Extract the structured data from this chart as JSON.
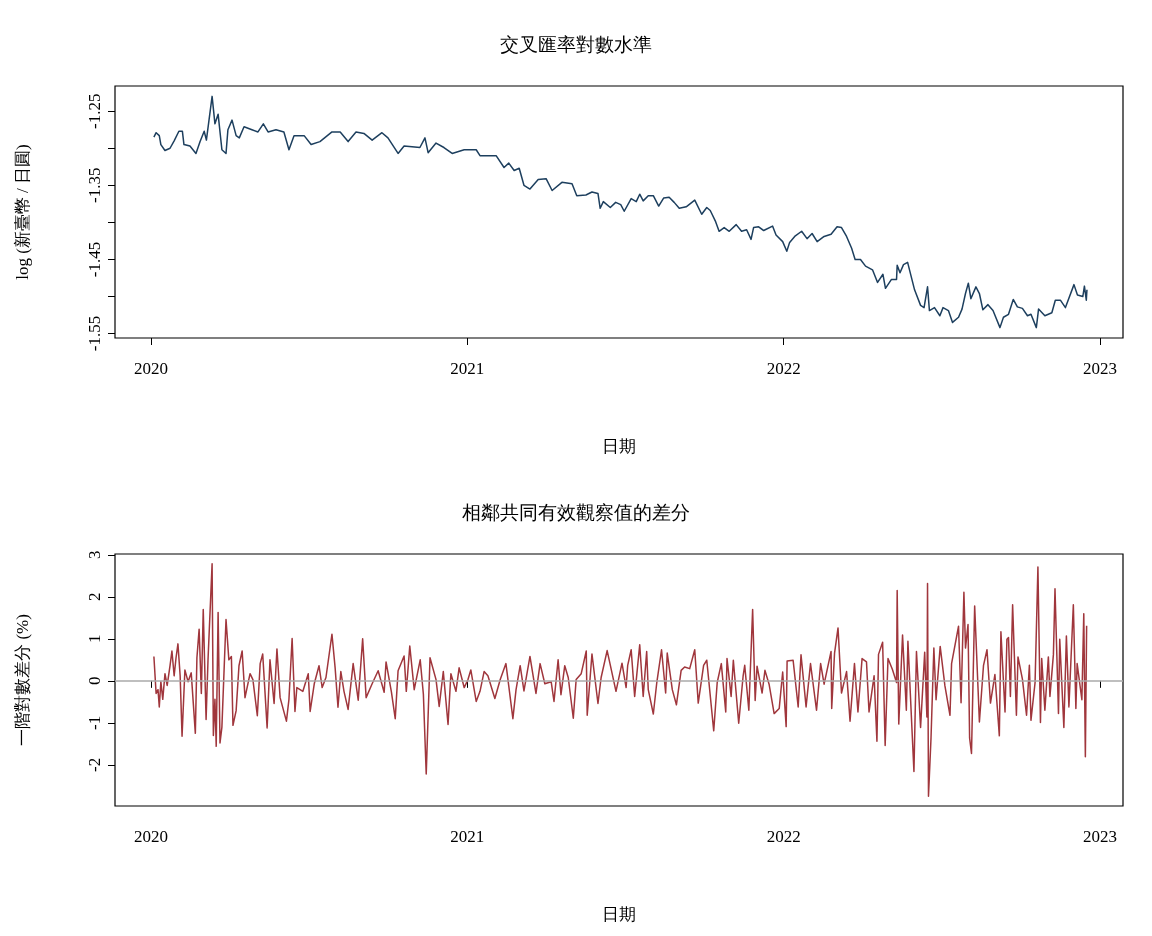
{
  "chart_data": [
    {
      "type": "line",
      "title": "交叉匯率對數水準",
      "xlabel": "日期",
      "ylabel": "log (新臺幣 / 日圓)",
      "color": "#1d3f5e",
      "xlim": [
        2019.886,
        2023.073
      ],
      "xticks": [
        2020,
        2021,
        2022,
        2023
      ],
      "ylim": [
        -1.556,
        -1.216
      ],
      "yticks": [
        -1.25,
        {
          "value": -1.3,
          "label": null
        },
        -1.35,
        {
          "value": -1.4,
          "label": null
        },
        -1.45,
        {
          "value": -1.5,
          "label": null
        },
        -1.55
      ],
      "x": [
        2020.009,
        2020.016,
        2020.026,
        2020.031,
        2020.044,
        2020.06,
        2020.073,
        2020.088,
        2020.099,
        2020.104,
        2020.123,
        2020.142,
        2020.155,
        2020.168,
        2020.175,
        2020.193,
        2020.202,
        2020.212,
        2020.224,
        2020.237,
        2020.243,
        2020.256,
        2020.269,
        2020.279,
        2020.294,
        2020.319,
        2020.338,
        2020.355,
        2020.37,
        2020.395,
        2020.42,
        2020.436,
        2020.452,
        2020.484,
        2020.506,
        2020.534,
        2020.572,
        2020.598,
        2020.623,
        2020.648,
        2020.673,
        2020.699,
        2020.73,
        2020.749,
        2020.781,
        2020.8,
        2020.85,
        2020.866,
        2020.876,
        2020.901,
        2020.926,
        2020.952,
        2020.99,
        2021.028,
        2021.04,
        2021.091,
        2021.116,
        2021.131,
        2021.148,
        2021.164,
        2021.179,
        2021.198,
        2021.224,
        2021.249,
        2021.268,
        2021.299,
        2021.331,
        2021.346,
        2021.375,
        2021.394,
        2021.413,
        2021.42,
        2021.43,
        2021.452,
        2021.469,
        2021.485,
        2021.496,
        2021.518,
        2021.534,
        2021.545,
        2021.556,
        2021.572,
        2021.588,
        2021.605,
        2021.621,
        2021.638,
        2021.654,
        2021.67,
        2021.692,
        2021.719,
        2021.741,
        2021.757,
        2021.768,
        2021.785,
        2021.796,
        2021.812,
        2021.828,
        2021.85,
        2021.867,
        2021.883,
        2021.897,
        2021.905,
        2021.921,
        2021.937,
        2021.965,
        2021.976,
        2021.997,
        2022.01,
        2022.019,
        2022.035,
        2022.057,
        2022.074,
        2022.09,
        2022.106,
        2022.128,
        2022.15,
        2022.169,
        2022.183,
        2022.199,
        2022.215,
        2022.226,
        2022.243,
        2022.259,
        2022.281,
        2022.297,
        2022.314,
        2022.322,
        2022.341,
        2022.357,
        2022.359,
        2022.368,
        2022.379,
        2022.392,
        2022.414,
        2022.433,
        2022.444,
        2022.455,
        2022.461,
        2022.477,
        2022.494,
        2022.504,
        2022.521,
        2022.534,
        2022.553,
        2022.564,
        2022.575,
        2022.584,
        2022.592,
        2022.608,
        2022.619,
        2022.63,
        2022.646,
        2022.662,
        2022.684,
        2022.695,
        2022.711,
        2022.726,
        2022.739,
        2022.755,
        2022.771,
        2022.782,
        2022.799,
        2022.806,
        2022.826,
        2022.848,
        2022.859,
        2022.875,
        2022.891,
        2022.918,
        2022.929,
        2022.946,
        2022.951,
        2022.957,
        2022.959
      ],
      "values": [
        -1.285,
        -1.279,
        -1.283,
        -1.295,
        -1.303,
        -1.3,
        -1.29,
        -1.277,
        -1.277,
        -1.295,
        -1.297,
        -1.307,
        -1.291,
        -1.277,
        -1.289,
        -1.23,
        -1.267,
        -1.254,
        -1.302,
        -1.307,
        -1.275,
        -1.262,
        -1.283,
        -1.286,
        -1.271,
        -1.275,
        -1.278,
        -1.267,
        -1.278,
        -1.275,
        -1.278,
        -1.302,
        -1.283,
        -1.283,
        -1.295,
        -1.291,
        -1.278,
        -1.278,
        -1.291,
        -1.278,
        -1.28,
        -1.289,
        -1.279,
        -1.286,
        -1.307,
        -1.297,
        -1.299,
        -1.286,
        -1.306,
        -1.293,
        -1.299,
        -1.307,
        -1.302,
        -1.302,
        -1.31,
        -1.31,
        -1.326,
        -1.32,
        -1.33,
        -1.327,
        -1.35,
        -1.355,
        -1.342,
        -1.341,
        -1.357,
        -1.346,
        -1.348,
        -1.364,
        -1.363,
        -1.359,
        -1.361,
        -1.381,
        -1.372,
        -1.38,
        -1.373,
        -1.376,
        -1.385,
        -1.368,
        -1.372,
        -1.362,
        -1.371,
        -1.364,
        -1.364,
        -1.378,
        -1.367,
        -1.366,
        -1.373,
        -1.381,
        -1.379,
        -1.37,
        -1.389,
        -1.38,
        -1.384,
        -1.399,
        -1.412,
        -1.407,
        -1.412,
        -1.403,
        -1.412,
        -1.41,
        -1.423,
        -1.407,
        -1.406,
        -1.411,
        -1.405,
        -1.417,
        -1.426,
        -1.439,
        -1.427,
        -1.419,
        -1.412,
        -1.422,
        -1.415,
        -1.426,
        -1.419,
        -1.416,
        -1.406,
        -1.407,
        -1.419,
        -1.435,
        -1.45,
        -1.45,
        -1.459,
        -1.464,
        -1.481,
        -1.47,
        -1.489,
        -1.477,
        -1.477,
        -1.458,
        -1.468,
        -1.457,
        -1.454,
        -1.491,
        -1.512,
        -1.515,
        -1.487,
        -1.519,
        -1.515,
        -1.526,
        -1.515,
        -1.519,
        -1.535,
        -1.528,
        -1.517,
        -1.496,
        -1.482,
        -1.503,
        -1.487,
        -1.496,
        -1.518,
        -1.511,
        -1.519,
        -1.542,
        -1.528,
        -1.524,
        -1.504,
        -1.514,
        -1.516,
        -1.526,
        -1.524,
        -1.542,
        -1.517,
        -1.526,
        -1.522,
        -1.505,
        -1.505,
        -1.515,
        -1.484,
        -1.498,
        -1.5,
        -1.486,
        -1.505,
        -1.491
      ]
    },
    {
      "type": "line",
      "title": "相鄰共同有效觀察值的差分",
      "xlabel": "日期",
      "ylabel": "一階對數差分 (%)",
      "color": "#a0363c",
      "xlim": [
        2019.886,
        2023.073
      ],
      "xticks": [
        2020,
        2021,
        2022,
        2023
      ],
      "ylim": [
        -2.98,
        3.02
      ],
      "yticks": [
        -2,
        -1,
        0,
        1,
        2,
        3
      ],
      "ref_lines": [
        {
          "axis": "y",
          "value": 0,
          "color": "#aaaaaa"
        }
      ],
      "x": [
        2020.009,
        2020.016,
        2020.022,
        2020.026,
        2020.031,
        2020.037,
        2020.044,
        2020.051,
        2020.06,
        2020.066,
        2020.073,
        2020.079,
        2020.085,
        2020.092,
        2020.098,
        2020.107,
        2020.117,
        2020.127,
        2020.14,
        2020.145,
        2020.152,
        2020.159,
        2020.165,
        2020.174,
        2020.18,
        2020.193,
        2020.197,
        2020.202,
        2020.206,
        2020.212,
        2020.218,
        2020.224,
        2020.237,
        2020.246,
        2020.254,
        2020.259,
        2020.269,
        2020.278,
        2020.288,
        2020.297,
        2020.313,
        2020.322,
        2020.336,
        2020.345,
        2020.353,
        2020.367,
        2020.376,
        2020.389,
        2020.398,
        2020.408,
        2020.428,
        2020.436,
        2020.446,
        2020.455,
        2020.461,
        2020.48,
        2020.497,
        2020.503,
        2020.516,
        2020.531,
        2020.541,
        2020.553,
        2020.572,
        2020.582,
        2020.591,
        2020.6,
        2020.61,
        2020.623,
        2020.639,
        2020.655,
        2020.669,
        2020.68,
        2020.699,
        2020.718,
        2020.737,
        2020.743,
        2020.76,
        2020.772,
        2020.781,
        2020.8,
        2020.807,
        2020.818,
        2020.832,
        2020.851,
        2020.861,
        2020.87,
        2020.882,
        2020.901,
        2020.911,
        2020.924,
        2020.939,
        2020.948,
        2020.964,
        2020.974,
        2020.99,
        2021.002,
        2021.011,
        2021.028,
        2021.04,
        2021.053,
        2021.065,
        2021.087,
        2021.104,
        2021.122,
        2021.144,
        2021.154,
        2021.167,
        2021.179,
        2021.198,
        2021.217,
        2021.23,
        2021.245,
        2021.265,
        2021.274,
        2021.287,
        2021.296,
        2021.308,
        2021.319,
        2021.335,
        2021.344,
        2021.36,
        2021.376,
        2021.379,
        2021.394,
        2021.413,
        2021.423,
        2021.442,
        2021.451,
        2021.47,
        2021.489,
        2021.502,
        2021.507,
        2021.518,
        2021.529,
        2021.545,
        2021.556,
        2021.567,
        2021.572,
        2021.588,
        2021.599,
        2021.614,
        2021.627,
        2021.632,
        2021.648,
        2021.661,
        2021.676,
        2021.687,
        2021.703,
        2021.719,
        2021.73,
        2021.747,
        2021.757,
        2021.779,
        2021.79,
        2021.803,
        2021.817,
        2021.821,
        2021.834,
        2021.841,
        2021.858,
        2021.872,
        2021.877,
        2021.89,
        2021.902,
        2021.91,
        2021.916,
        2021.932,
        2021.941,
        2021.954,
        2021.97,
        2021.986,
        2021.997,
        2022.008,
        2022.011,
        2022.03,
        2022.046,
        2022.055,
        2022.071,
        2022.085,
        2022.104,
        2022.117,
        2022.128,
        2022.15,
        2022.152,
        2022.161,
        2022.172,
        2022.183,
        2022.199,
        2022.21,
        2022.224,
        2022.235,
        2022.248,
        2022.262,
        2022.27,
        2022.286,
        2022.295,
        2022.3,
        2022.313,
        2022.321,
        2022.33,
        2022.344,
        2022.357,
        2022.359,
        2022.364,
        2022.376,
        2022.388,
        2022.393,
        2022.406,
        2022.412,
        2022.42,
        2022.433,
        2022.446,
        2022.453,
        2022.455,
        2022.458,
        2022.466,
        2022.475,
        2022.482,
        2022.495,
        2022.51,
        2022.526,
        2022.531,
        2022.553,
        2022.561,
        2022.57,
        2022.575,
        2022.583,
        2022.588,
        2022.594,
        2022.604,
        2022.619,
        2022.632,
        2022.643,
        2022.654,
        2022.668,
        2022.682,
        2022.687,
        2022.7,
        2022.706,
        2022.711,
        2022.717,
        2022.724,
        2022.736,
        2022.741,
        2022.755,
        2022.768,
        2022.777,
        2022.782,
        2022.795,
        2022.804,
        2022.812,
        2022.816,
        2022.826,
        2022.837,
        2022.842,
        2022.853,
        2022.858,
        2022.869,
        2022.873,
        2022.886,
        2022.894,
        2022.902,
        2022.916,
        2022.924,
        2022.928,
        2022.943,
        2022.949,
        2022.954,
        2022.958
      ],
      "values": [
        0.58,
        -0.3,
        -0.21,
        -0.62,
        -0.02,
        -0.44,
        0.17,
        -0.11,
        0.36,
        0.71,
        0.12,
        0.55,
        0.88,
        0.12,
        -1.32,
        0.26,
        -0.02,
        0.19,
        -1.25,
        0.55,
        1.23,
        -0.3,
        1.7,
        -0.92,
        0.48,
        2.79,
        -1.3,
        -0.44,
        -1.56,
        1.63,
        -1.48,
        -1.1,
        1.46,
        0.5,
        0.58,
        -1.06,
        -0.71,
        0.36,
        0.71,
        -0.4,
        0.17,
        0.03,
        -0.83,
        0.41,
        0.64,
        -1.12,
        0.5,
        -0.54,
        0.76,
        -0.4,
        -0.96,
        -0.44,
        1.01,
        -0.73,
        -0.16,
        -0.25,
        0.17,
        -0.73,
        -0.07,
        0.36,
        -0.16,
        0.08,
        1.11,
        0.31,
        -0.63,
        0.22,
        -0.25,
        -0.68,
        0.41,
        -0.46,
        1.0,
        -0.4,
        -0.07,
        0.24,
        -0.27,
        0.45,
        -0.27,
        -0.9,
        0.24,
        0.59,
        -0.25,
        0.83,
        -0.21,
        0.5,
        -0.32,
        -2.22,
        0.55,
        0.03,
        -0.61,
        0.22,
        -1.04,
        0.17,
        -0.25,
        0.31,
        -0.16,
        0.03,
        0.26,
        -0.49,
        -0.25,
        0.22,
        0.12,
        -0.42,
        0.03,
        0.41,
        -0.9,
        -0.21,
        0.36,
        -0.24,
        0.58,
        -0.3,
        0.41,
        -0.07,
        -0.02,
        -0.49,
        0.5,
        -0.33,
        0.36,
        0.08,
        -0.89,
        0.03,
        0.17,
        0.71,
        -0.82,
        0.64,
        -0.54,
        0.08,
        0.72,
        0.41,
        -0.25,
        0.42,
        -0.16,
        0.37,
        0.74,
        -0.37,
        0.86,
        -0.37,
        0.7,
        -0.21,
        -0.79,
        -0.04,
        0.74,
        -0.29,
        0.66,
        -0.21,
        -0.57,
        0.25,
        0.33,
        0.29,
        0.74,
        -0.53,
        0.37,
        0.49,
        -1.19,
        -0.04,
        0.41,
        -0.74,
        0.53,
        -0.37,
        0.49,
        -1.01,
        0.12,
        0.37,
        -0.7,
        1.7,
        -0.47,
        0.35,
        -0.29,
        0.25,
        -0.08,
        -0.78,
        -0.66,
        0.21,
        -1.09,
        0.47,
        0.49,
        -0.62,
        0.62,
        -0.62,
        0.41,
        -0.7,
        0.41,
        -0.08,
        0.7,
        -0.66,
        0.66,
        1.26,
        -0.29,
        0.22,
        -0.96,
        0.41,
        -0.74,
        0.53,
        0.45,
        -0.74,
        0.12,
        -1.44,
        0.63,
        0.92,
        -1.54,
        0.53,
        0.27,
        -0.04,
        2.15,
        -1.03,
        1.09,
        -0.7,
        0.94,
        -1.19,
        -2.16,
        0.7,
        -1.11,
        0.68,
        -0.86,
        2.32,
        -2.75,
        -1.36,
        0.78,
        -0.45,
        0.82,
        -0.12,
        -0.82,
        0.41,
        1.3,
        -0.52,
        2.11,
        0.78,
        1.34,
        -1.36,
        -1.73,
        1.78,
        -0.98,
        0.37,
        0.74,
        -0.53,
        0.15,
        -1.31,
        1.17,
        -0.74,
        0.99,
        1.03,
        -0.37,
        1.81,
        -0.82,
        0.57,
        0.04,
        -0.82,
        0.37,
        -0.94,
        -0.04,
        2.71,
        -0.99,
        0.53,
        -0.7,
        0.57,
        -0.37,
        0.63,
        2.19,
        -0.78,
        0.99,
        -1.11,
        1.07,
        -0.62,
        1.81,
        -0.66,
        0.41,
        -0.45,
        1.6,
        -1.81,
        1.31
      ]
    }
  ]
}
